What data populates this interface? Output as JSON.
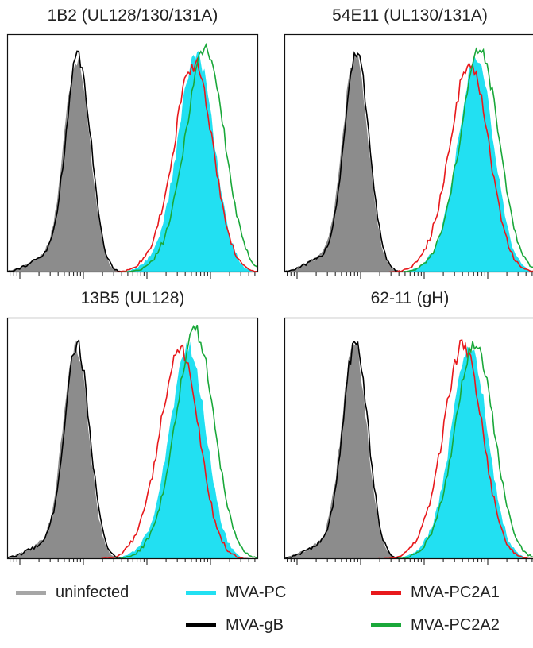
{
  "chart_data": {
    "type": "area",
    "x_scale": "log",
    "colors": {
      "uninfected": "#8c8c8c",
      "MVA-PC": "#22e0f2",
      "MVA-gB": "#000000",
      "MVA-PC2A1": "#e8191c",
      "MVA-PC2A2": "#1aa83a"
    },
    "legend": [
      {
        "label": "uninfected",
        "color": "#a6a6a6"
      },
      {
        "label": "MVA-PC",
        "color": "#22e0f2"
      },
      {
        "label": "MVA-PC2A1",
        "color": "#e8191c"
      },
      {
        "label": "MVA-gB",
        "color": "#000000"
      },
      {
        "label": "MVA-PC2A2",
        "color": "#1aa83a"
      }
    ],
    "panels": [
      {
        "title": "1B2 (UL128/130/131A)",
        "series": [
          {
            "name": "uninfected",
            "style": "fill",
            "peak": 0.9,
            "height": 0.95
          },
          {
            "name": "MVA-gB",
            "style": "line",
            "peak": 0.92,
            "height": 0.96
          },
          {
            "name": "MVA-PC",
            "style": "fill",
            "peak": 2.78,
            "height": 0.97
          },
          {
            "name": "MVA-PC2A1",
            "style": "line",
            "peak": 2.74,
            "height": 0.93
          },
          {
            "name": "MVA-PC2A2",
            "style": "line",
            "peak": 2.92,
            "height": 1.0
          }
        ]
      },
      {
        "title": "54E11 (UL130/131A)",
        "series": [
          {
            "name": "uninfected",
            "style": "fill",
            "peak": 0.92,
            "height": 0.96
          },
          {
            "name": "MVA-gB",
            "style": "line",
            "peak": 0.94,
            "height": 0.97
          },
          {
            "name": "MVA-PC",
            "style": "fill",
            "peak": 2.82,
            "height": 0.95
          },
          {
            "name": "MVA-PC2A1",
            "style": "line",
            "peak": 2.72,
            "height": 0.93
          },
          {
            "name": "MVA-PC2A2",
            "style": "line",
            "peak": 2.88,
            "height": 0.98
          }
        ]
      },
      {
        "title": "13B5 (UL128)",
        "series": [
          {
            "name": "uninfected",
            "style": "fill",
            "peak": 0.88,
            "height": 0.93
          },
          {
            "name": "MVA-gB",
            "style": "line",
            "peak": 0.9,
            "height": 0.94
          },
          {
            "name": "MVA-PC",
            "style": "fill",
            "peak": 2.65,
            "height": 0.93
          },
          {
            "name": "MVA-PC2A1",
            "style": "line",
            "peak": 2.52,
            "height": 0.92
          },
          {
            "name": "MVA-PC2A2",
            "style": "line",
            "peak": 2.76,
            "height": 1.0
          }
        ]
      },
      {
        "title": "62-11 (gH)",
        "series": [
          {
            "name": "uninfected",
            "style": "fill",
            "peak": 0.9,
            "height": 0.93
          },
          {
            "name": "MVA-gB",
            "style": "line",
            "peak": 0.92,
            "height": 0.95
          },
          {
            "name": "MVA-PC",
            "style": "fill",
            "peak": 2.72,
            "height": 0.93
          },
          {
            "name": "MVA-PC2A1",
            "style": "line",
            "peak": 2.62,
            "height": 0.94
          },
          {
            "name": "MVA-PC2A2",
            "style": "line",
            "peak": 2.8,
            "height": 0.95
          }
        ]
      }
    ]
  }
}
